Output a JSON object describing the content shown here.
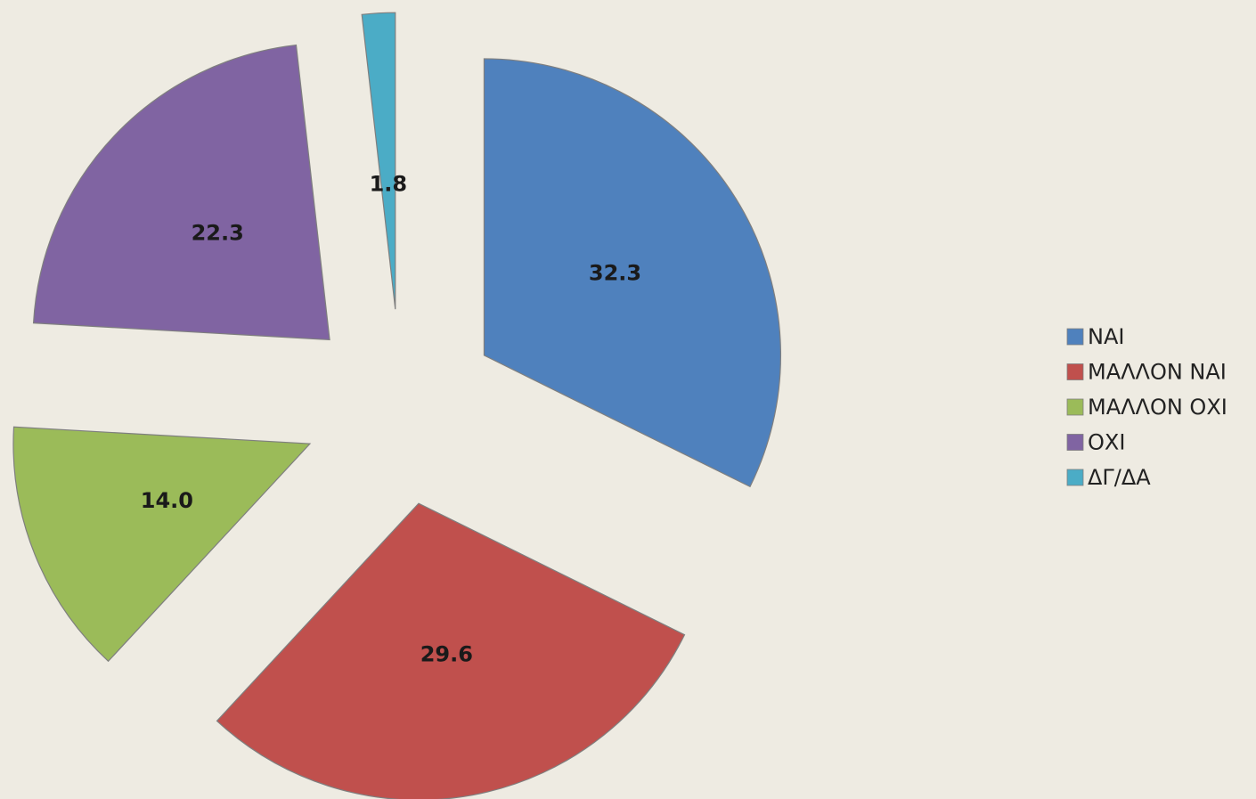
{
  "chart_data": {
    "type": "pie",
    "categories": [
      "ΝΑΙ",
      "ΜΑΛΛΟΝ ΝΑΙ",
      "ΜΑΛΛΟΝ ΟΧΙ",
      "ΟΧΙ",
      "ΔΓ/ΔΑ"
    ],
    "values": [
      32.3,
      29.6,
      14.0,
      22.3,
      1.8
    ],
    "value_labels": [
      "32.3",
      "29.6",
      "14.0",
      "22.3",
      "1.8"
    ],
    "colors": [
      "#4f81bd",
      "#c0504d",
      "#9bbb59",
      "#8064a2",
      "#4bacc6"
    ],
    "legend": "right"
  }
}
